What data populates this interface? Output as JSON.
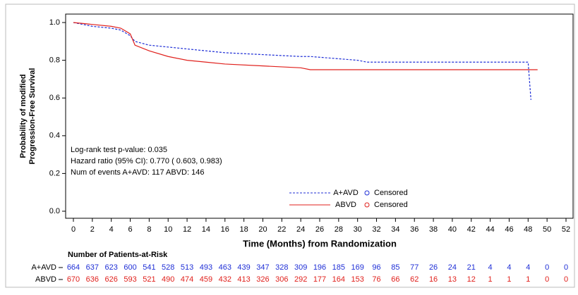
{
  "chart_data": {
    "type": "line",
    "y_label": [
      "Probability of modified",
      "Progression-Free Survival"
    ],
    "x_label": "Time (Months) from Randomization",
    "annotations": [
      "Log-rank test p-value: 0.035",
      "Hazard ratio (95% CI):  0.770 ( 0.603,  0.983)",
      "Num of events  A+AVD: 117  ABVD: 146"
    ],
    "censored_label": "Censored",
    "x": [
      0,
      2,
      4,
      5,
      6,
      6.5,
      8,
      10,
      12,
      14,
      16,
      20,
      24,
      25,
      30,
      31,
      48,
      48.3,
      49
    ],
    "series": [
      {
        "name": "A+AVD",
        "color": "#1f2fd6",
        "dashed": true,
        "values": [
          1.0,
          0.98,
          0.97,
          0.96,
          0.93,
          0.9,
          0.88,
          0.87,
          0.86,
          0.85,
          0.84,
          0.83,
          0.82,
          0.82,
          0.8,
          0.79,
          0.79,
          0.59,
          null
        ]
      },
      {
        "name": "ABVD",
        "color": "#e0201c",
        "dashed": false,
        "values": [
          1.0,
          0.99,
          0.98,
          0.97,
          0.94,
          0.88,
          0.85,
          0.82,
          0.8,
          0.79,
          0.78,
          0.77,
          0.76,
          0.75,
          0.75,
          0.75,
          0.75,
          0.75,
          0.75
        ]
      }
    ],
    "xlim": [
      0,
      52
    ],
    "xticks": [
      0,
      2,
      4,
      6,
      8,
      10,
      12,
      14,
      16,
      18,
      20,
      22,
      24,
      26,
      28,
      30,
      32,
      34,
      36,
      38,
      40,
      42,
      44,
      46,
      48,
      50,
      52
    ],
    "ylim": [
      0,
      1
    ],
    "yticks": [
      {
        "value": 0,
        "label": "0.0"
      },
      0.2,
      0.4,
      0.6,
      0.8,
      {
        "value": 1,
        "label": "1.0"
      }
    ],
    "risk_table": {
      "title": "Number of Patients-at-Risk",
      "rows": [
        {
          "name": "A+AVD",
          "color": "#1f2fd6",
          "values": [
            664,
            637,
            623,
            600,
            541,
            528,
            513,
            493,
            463,
            439,
            347,
            328,
            309,
            196,
            185,
            169,
            96,
            85,
            77,
            26,
            24,
            21,
            4,
            4,
            4,
            0,
            0
          ]
        },
        {
          "name": "ABVD",
          "color": "#e0201c",
          "values": [
            670,
            636,
            626,
            593,
            521,
            490,
            474,
            459,
            432,
            413,
            326,
            306,
            292,
            177,
            164,
            153,
            76,
            66,
            62,
            16,
            13,
            12,
            1,
            1,
            1,
            0,
            0
          ]
        }
      ]
    }
  }
}
